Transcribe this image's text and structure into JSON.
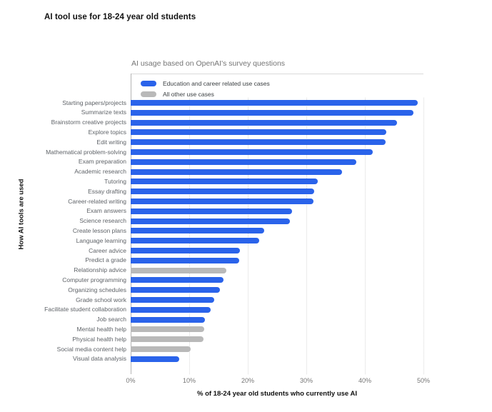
{
  "page": {
    "title": "AI tool use for 18-24 year old students"
  },
  "chart_data": {
    "type": "bar",
    "orientation": "horizontal",
    "title": "AI usage based on OpenAI's survey questions",
    "xlabel": "% of 18-24 year old students who currently use AI",
    "ylabel": "How AI tools are used",
    "xlim": [
      0,
      50
    ],
    "x_ticks": [
      "0%",
      "10%",
      "20%",
      "30%",
      "40%",
      "50%"
    ],
    "grid": "vertical-dotted",
    "legend_position": "top-left-inside",
    "series": [
      {
        "name": "Education and career related use cases",
        "color": "#2a63ea"
      },
      {
        "name": "All other use cases",
        "color": "#b9b9b9"
      }
    ],
    "bars": [
      {
        "label": "Starting papers/projects",
        "value": 49.0,
        "series": 0
      },
      {
        "label": "Summarize texts",
        "value": 48.3,
        "series": 0
      },
      {
        "label": "Brainstorm creative projects",
        "value": 45.5,
        "series": 0
      },
      {
        "label": "Explore topics",
        "value": 43.7,
        "series": 0
      },
      {
        "label": "Edit writing",
        "value": 43.5,
        "series": 0
      },
      {
        "label": "Mathematical problem-solving",
        "value": 41.3,
        "series": 0
      },
      {
        "label": "Exam preparation",
        "value": 38.5,
        "series": 0
      },
      {
        "label": "Academic research",
        "value": 36.1,
        "series": 0
      },
      {
        "label": "Tutoring",
        "value": 31.9,
        "series": 0
      },
      {
        "label": "Essay drafting",
        "value": 31.4,
        "series": 0
      },
      {
        "label": "Career-related writing",
        "value": 31.2,
        "series": 0
      },
      {
        "label": "Exam answers",
        "value": 27.6,
        "series": 0
      },
      {
        "label": "Science research",
        "value": 27.2,
        "series": 0
      },
      {
        "label": "Create lesson plans",
        "value": 22.8,
        "series": 0
      },
      {
        "label": "Language learning",
        "value": 21.9,
        "series": 0
      },
      {
        "label": "Career advice",
        "value": 18.7,
        "series": 0
      },
      {
        "label": "Predict a grade",
        "value": 18.5,
        "series": 0
      },
      {
        "label": "Relationship advice",
        "value": 16.3,
        "series": 1
      },
      {
        "label": "Computer programming",
        "value": 15.9,
        "series": 0
      },
      {
        "label": "Organizing schedules",
        "value": 15.2,
        "series": 0
      },
      {
        "label": "Grade school work",
        "value": 14.3,
        "series": 0
      },
      {
        "label": "Facilitate student collaboration",
        "value": 13.6,
        "series": 0
      },
      {
        "label": "Job search",
        "value": 12.7,
        "series": 0
      },
      {
        "label": "Mental health help",
        "value": 12.5,
        "series": 1
      },
      {
        "label": "Physical health help",
        "value": 12.4,
        "series": 1
      },
      {
        "label": "Social media content help",
        "value": 10.2,
        "series": 1
      },
      {
        "label": "Visual data analysis",
        "value": 8.3,
        "series": 0
      }
    ]
  },
  "colors": {
    "education_bar": "#2a63ea",
    "other_bar": "#b9b9b9",
    "axis_line": "#b5b5b5",
    "gridline": "#d8d8d8",
    "tick_text": "#757575",
    "category_text": "#5f6368",
    "title_text": "#111111",
    "chart_title_text": "#757575"
  }
}
